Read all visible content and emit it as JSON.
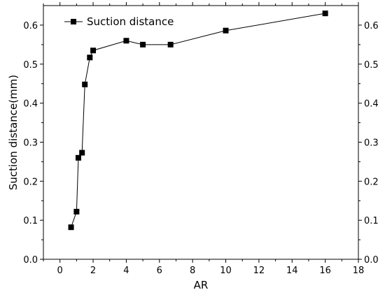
{
  "chart_data": {
    "type": "line",
    "title": "",
    "xlabel": "AR",
    "ylabel": "Suction distance(mm)",
    "xlim": [
      -1,
      18
    ],
    "ylim": [
      0.0,
      0.65
    ],
    "x_ticks": [
      0,
      2,
      4,
      6,
      8,
      10,
      12,
      14,
      16,
      18
    ],
    "y_ticks": [
      0.0,
      0.1,
      0.2,
      0.3,
      0.4,
      0.5,
      0.6
    ],
    "x_tick_labels": [
      "0",
      "2",
      "4",
      "6",
      "8",
      "10",
      "12",
      "14",
      "16",
      "18"
    ],
    "y_tick_labels": [
      "0.0",
      "0.1",
      "0.2",
      "0.3",
      "0.4",
      "0.5",
      "0.6"
    ],
    "grid": false,
    "legend_position": "top-left",
    "series": [
      {
        "name": "Suction distance",
        "marker": "square",
        "color": "#000000",
        "points": [
          {
            "x": 0.67,
            "y": 0.082
          },
          {
            "x": 1.0,
            "y": 0.122
          },
          {
            "x": 1.11,
            "y": 0.26
          },
          {
            "x": 1.33,
            "y": 0.273
          },
          {
            "x": 1.5,
            "y": 0.448
          },
          {
            "x": 1.8,
            "y": 0.517
          },
          {
            "x": 2.0,
            "y": 0.535
          },
          {
            "x": 4.0,
            "y": 0.56
          },
          {
            "x": 5.0,
            "y": 0.55
          },
          {
            "x": 6.67,
            "y": 0.55
          },
          {
            "x": 10.0,
            "y": 0.586
          },
          {
            "x": 16.0,
            "y": 0.63
          }
        ]
      }
    ]
  }
}
